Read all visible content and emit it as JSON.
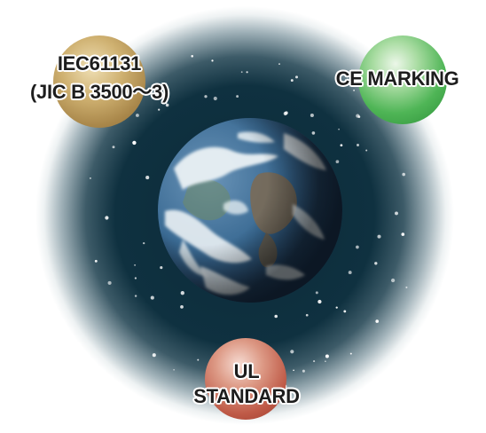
{
  "badges": {
    "iec": {
      "line1": "IEC61131",
      "line2": "(JIC B 3500～3)",
      "color": "#b8975a"
    },
    "ce": {
      "text": "CE MARKING",
      "color": "#4fb556"
    },
    "ul": {
      "line1": "UL",
      "line2": "STANDARD",
      "color": "#bf5a47"
    }
  },
  "colors": {
    "space": "#0d2a38",
    "halo": "#ffffff",
    "ocean": "#2f5f86",
    "cloud": "#e6eef2",
    "land": "#7a6a52"
  }
}
